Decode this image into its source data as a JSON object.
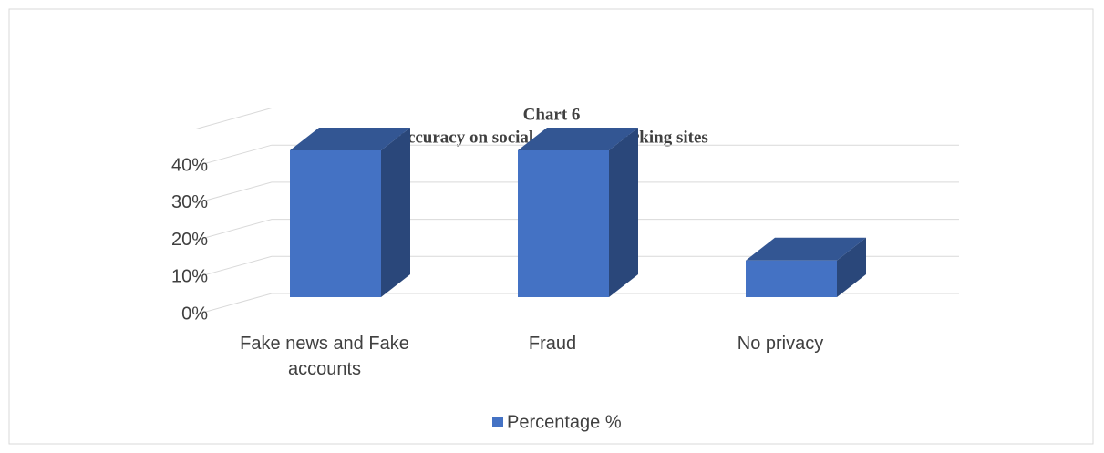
{
  "chart_data": {
    "type": "bar3d",
    "title": "Chart 6",
    "subtitle": "Accuracy on social media networking sites",
    "categories": [
      "Fake news and Fake accounts",
      "Fraud",
      "No privacy"
    ],
    "series": [
      {
        "name": "Percentage %",
        "color": "#4472c4",
        "values": [
          40,
          40,
          10
        ]
      }
    ],
    "ylim": [
      0,
      50
    ],
    "yticks": [
      {
        "value": 0,
        "label": "0%"
      },
      {
        "value": 10,
        "label": "10%"
      },
      {
        "value": 20,
        "label": "20%"
      },
      {
        "value": 30,
        "label": "30%"
      },
      {
        "value": 40,
        "label": "40%"
      }
    ],
    "grid": true,
    "legend": "bottom"
  }
}
